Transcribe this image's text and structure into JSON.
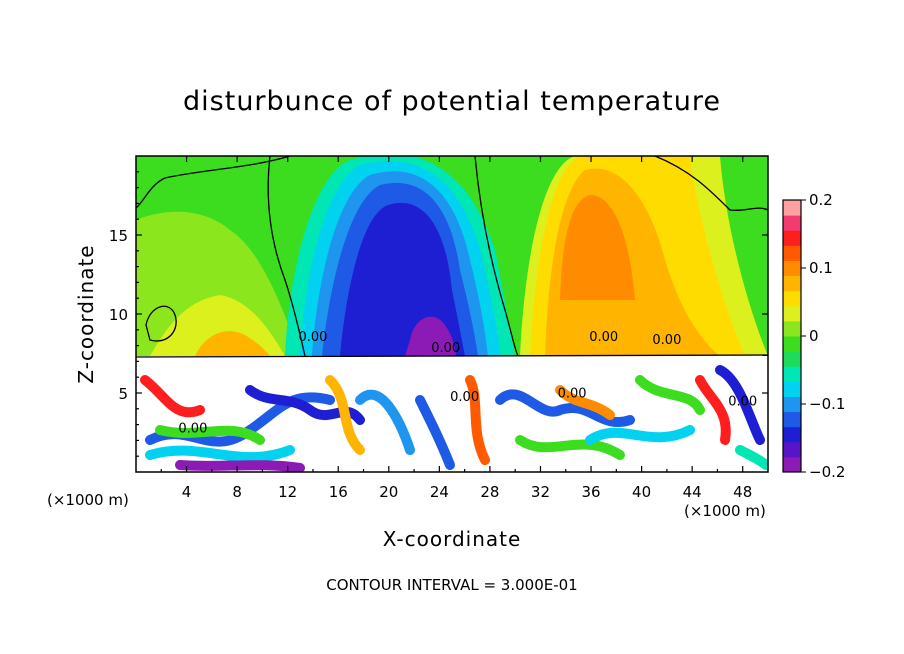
{
  "chart_data": {
    "type": "heatmap",
    "title": "disturbunce of potential temperature",
    "xlabel": "X-coordinate",
    "ylabel": "Z-coordinate",
    "x_units": "(×1000 m)",
    "xlim": [
      0,
      50
    ],
    "ylim": [
      0,
      20
    ],
    "x_ticks": [
      4,
      8,
      12,
      16,
      20,
      24,
      28,
      32,
      36,
      40,
      44,
      48
    ],
    "y_ticks": [
      5,
      10,
      15
    ],
    "colorbar": {
      "range": [
        -0.2,
        0.2
      ],
      "ticks": [
        {
          "value": 0.2,
          "label": "0.2"
        },
        {
          "value": 0.1,
          "label": "0.1"
        },
        {
          "value": 0,
          "label": "0"
        },
        {
          "value": -0.1,
          "label": "−0.1"
        },
        {
          "value": -0.2,
          "label": "−0.2"
        }
      ],
      "colors": [
        "#8c1ab4",
        "#5a14c8",
        "#1e1ed2",
        "#1e5ae6",
        "#1e96f0",
        "#00d2f0",
        "#00e6b4",
        "#1edc5a",
        "#3cdc1e",
        "#8ce61e",
        "#dcf01e",
        "#ffdc00",
        "#ffb400",
        "#ff8c00",
        "#ff5a00",
        "#ff1e1e",
        "#f03c6e",
        "#ffa0a0"
      ]
    },
    "contour_labels": [
      "0.00",
      "0.00",
      "0.00",
      "0.00",
      "0.00",
      "0.00",
      "0.00",
      "0.00"
    ],
    "contour_interval": "CONTOUR INTERVAL = 3.000E-01"
  }
}
